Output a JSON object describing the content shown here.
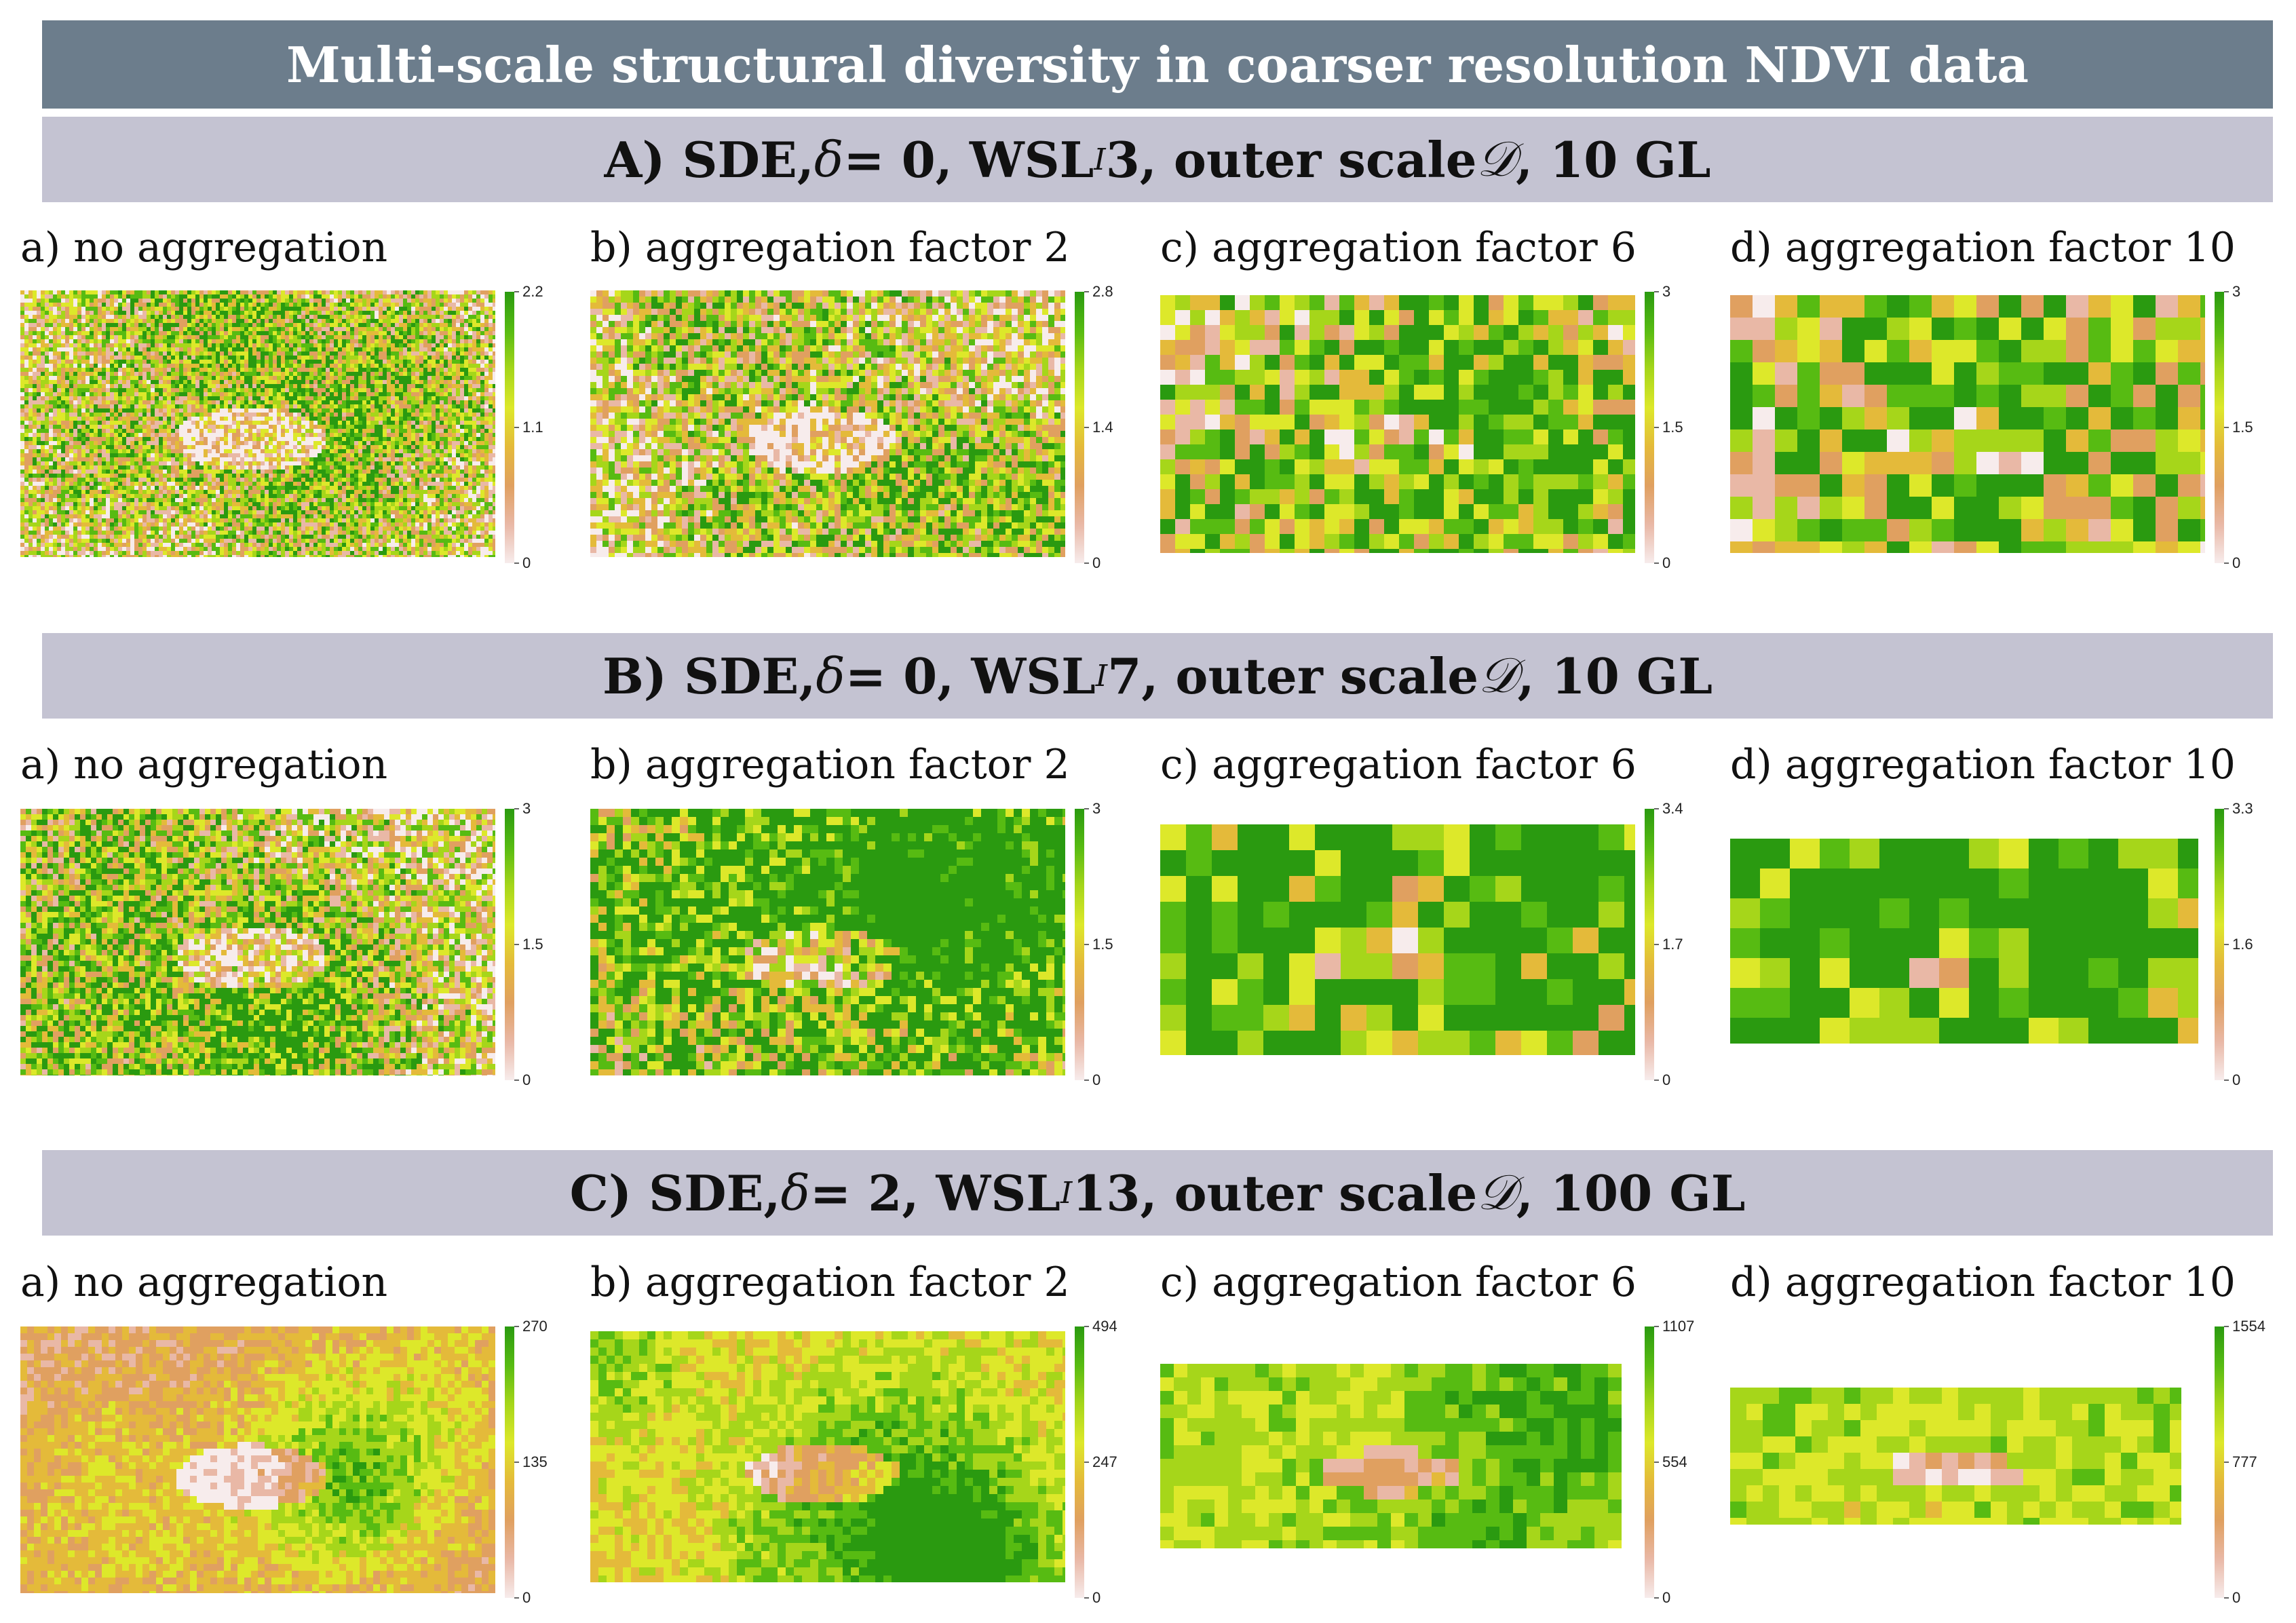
{
  "title": "Multi-scale structural diversity in coarser resolution NDVI data",
  "colors": {
    "title_bg": "#6c7d8c",
    "section_bg": "#c4c3d2",
    "ramp": [
      "#f7ecec",
      "#e9b8a6",
      "#e0a060",
      "#e4ba3a",
      "#dde82a",
      "#a6d61a",
      "#57bb12",
      "#2a9a10"
    ]
  },
  "sections": [
    {
      "id": "A",
      "parts": {
        "prefix": "A) SDE, ",
        "delta": "δ",
        "delta_eq": " = 0, WSL",
        "sub": "I",
        "mid": " 3, outer scale ",
        "d": "𝒟",
        "suffix": ", 10 GL"
      },
      "panels": [
        {
          "label": "a) no aggregation",
          "legend": {
            "max": "2.2",
            "mid": "1.1",
            "min": "0"
          },
          "level": 0.35
        },
        {
          "label": "b) aggregation factor 2",
          "legend": {
            "max": "2.8",
            "mid": "1.4",
            "min": "0"
          },
          "level": 0.38
        },
        {
          "label": "c) aggregation factor 6",
          "legend": {
            "max": "3",
            "mid": "1.5",
            "min": "0"
          },
          "level": 0.45
        },
        {
          "label": "d) aggregation factor 10",
          "legend": {
            "max": "3",
            "mid": "1.5",
            "min": "0"
          },
          "level": 0.5
        }
      ]
    },
    {
      "id": "B",
      "parts": {
        "prefix": "B) SDE, ",
        "delta": "δ",
        "delta_eq": " = 0, WSL",
        "sub": "I",
        "mid": " 7, outer scale ",
        "d": "𝒟",
        "suffix": ", 10 GL"
      },
      "panels": [
        {
          "label": "a) no aggregation",
          "legend": {
            "max": "3",
            "mid": "1.5",
            "min": "0"
          },
          "level": 0.42
        },
        {
          "label": "b) aggregation factor 2",
          "legend": {
            "max": "3",
            "mid": "1.5",
            "min": "0"
          },
          "level": 0.55
        },
        {
          "label": "c) aggregation factor 6",
          "legend": {
            "max": "3.4",
            "mid": "1.7",
            "min": "0"
          },
          "level": 0.72
        },
        {
          "label": "d) aggregation factor 10",
          "legend": {
            "max": "3.3",
            "mid": "1.6",
            "min": "0"
          },
          "level": 0.8
        }
      ]
    },
    {
      "id": "C",
      "parts": {
        "prefix": "C) SDE, ",
        "delta": "δ",
        "delta_eq": " = 2, WSL",
        "sub": "I",
        "mid": " 13, outer scale ",
        "d": "𝒟",
        "suffix": ", 100 GL"
      },
      "panels": [
        {
          "label": "a) no aggregation",
          "legend": {
            "max": "270",
            "mid": "135",
            "min": "0"
          },
          "level": 0.3
        },
        {
          "label": "b) aggregation factor 2",
          "legend": {
            "max": "494",
            "mid": "247",
            "min": "0"
          },
          "level": 0.5
        },
        {
          "label": "c) aggregation factor 6",
          "legend": {
            "max": "1107",
            "mid": "554",
            "min": "0"
          },
          "level": 0.66
        },
        {
          "label": "d) aggregation factor 10",
          "legend": {
            "max": "1554",
            "mid": "777",
            "min": "0"
          },
          "level": 0.62
        }
      ]
    }
  ]
}
